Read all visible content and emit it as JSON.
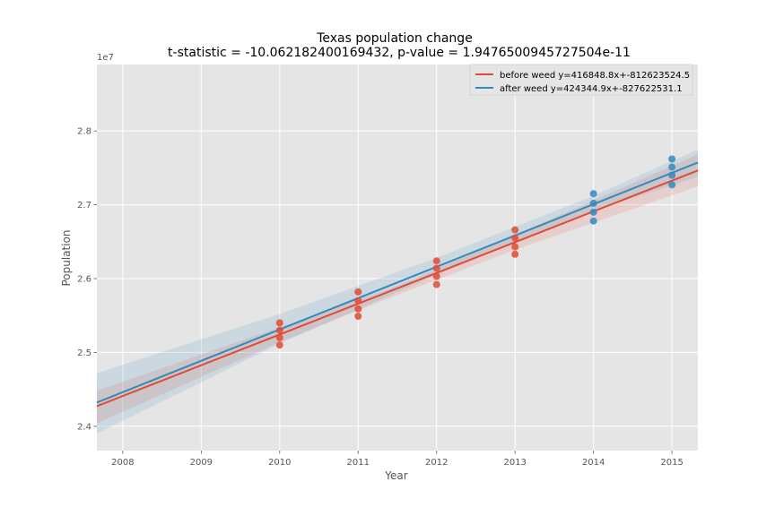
{
  "chart_data": {
    "type": "scatter",
    "title": "Texas population change",
    "subtitle": "t-statistic = -10.062182400169432, p-value = 1.9476500945727504e-11",
    "xlabel": "Year",
    "ylabel": "Population",
    "y_offset_label": "1e7",
    "xlim": [
      2007.67,
      2015.33
    ],
    "ylim": [
      2.367,
      2.89
    ],
    "x_ticks": [
      2008,
      2009,
      2010,
      2011,
      2012,
      2013,
      2014,
      2015
    ],
    "y_ticks": [
      2.4,
      2.5,
      2.6,
      2.7,
      2.8
    ],
    "grid": true,
    "legend_position": "top-right",
    "series": [
      {
        "name": "before weed y=416848.8x+-812623524.5",
        "color": "#e24a33",
        "slope": 0.04168488,
        "intercept": -81.26235245,
        "points": [
          {
            "x": 2010,
            "y": 2.51
          },
          {
            "x": 2010,
            "y": 2.52
          },
          {
            "x": 2010,
            "y": 2.53
          },
          {
            "x": 2010,
            "y": 2.54
          },
          {
            "x": 2011,
            "y": 2.549
          },
          {
            "x": 2011,
            "y": 2.559
          },
          {
            "x": 2011,
            "y": 2.57
          },
          {
            "x": 2011,
            "y": 2.582
          },
          {
            "x": 2012,
            "y": 2.592
          },
          {
            "x": 2012,
            "y": 2.603
          },
          {
            "x": 2012,
            "y": 2.614
          },
          {
            "x": 2012,
            "y": 2.624
          },
          {
            "x": 2013,
            "y": 2.633
          },
          {
            "x": 2013,
            "y": 2.643
          },
          {
            "x": 2013,
            "y": 2.655
          },
          {
            "x": 2013,
            "y": 2.666
          }
        ],
        "band": [
          {
            "x": 2007.67,
            "lower": 2.404,
            "upper": 2.448
          },
          {
            "x": 2010,
            "lower": 2.514,
            "upper": 2.534
          },
          {
            "x": 2011.5,
            "lower": 2.578,
            "upper": 2.59
          },
          {
            "x": 2013,
            "lower": 2.639,
            "upper": 2.659
          },
          {
            "x": 2015.33,
            "lower": 2.725,
            "upper": 2.768
          }
        ]
      },
      {
        "name": "after weed y=424344.9x+-827622531.1",
        "color": "#348abd",
        "slope": 0.04243449,
        "intercept": -82.76225311,
        "points": [
          {
            "x": 2014,
            "y": 2.678
          },
          {
            "x": 2014,
            "y": 2.69
          },
          {
            "x": 2014,
            "y": 2.702
          },
          {
            "x": 2014,
            "y": 2.715
          },
          {
            "x": 2015,
            "y": 2.727
          },
          {
            "x": 2015,
            "y": 2.74
          },
          {
            "x": 2015,
            "y": 2.751
          },
          {
            "x": 2015,
            "y": 2.762
          }
        ],
        "band": [
          {
            "x": 2007.67,
            "lower": 2.39,
            "upper": 2.472
          },
          {
            "x": 2010,
            "lower": 2.512,
            "upper": 2.552
          },
          {
            "x": 2012,
            "lower": 2.605,
            "upper": 2.628
          },
          {
            "x": 2014,
            "lower": 2.692,
            "upper": 2.712
          },
          {
            "x": 2015.33,
            "lower": 2.738,
            "upper": 2.775
          }
        ]
      }
    ]
  }
}
